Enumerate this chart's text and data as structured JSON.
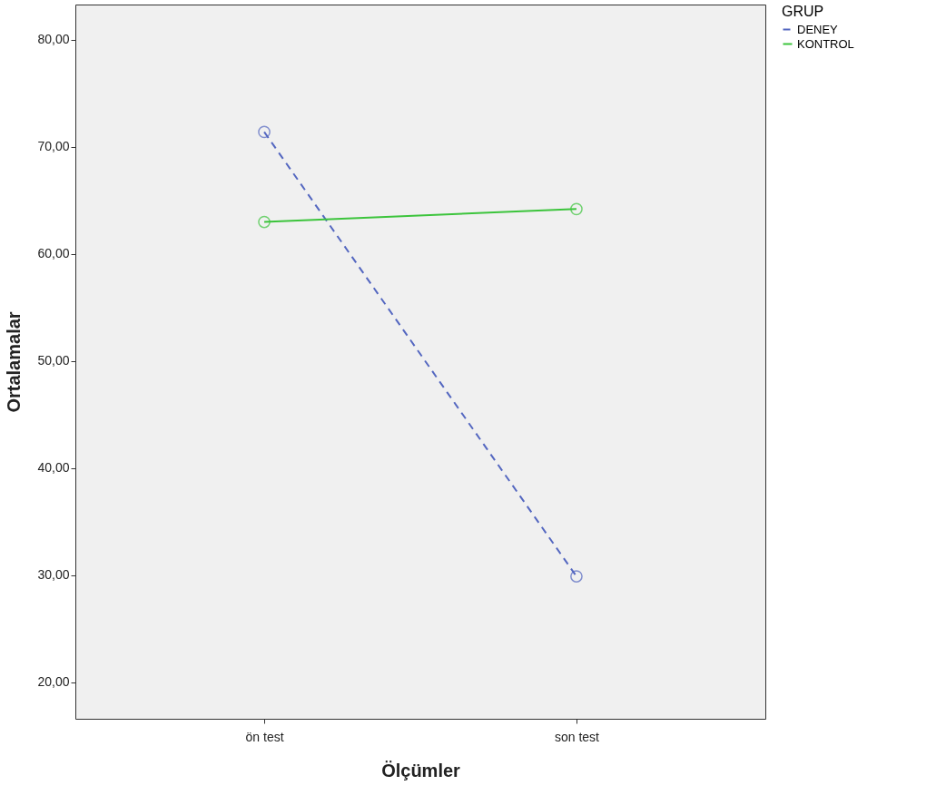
{
  "chart_data": {
    "type": "line",
    "xlabel": "Ölçümler",
    "ylabel": "Ortalamalar",
    "legend_title": "GRUP",
    "categories": [
      "ön test",
      "son test"
    ],
    "series": [
      {
        "name": "DENEY",
        "color": "#5467c0",
        "line_style": "dashed",
        "values": [
          71.4,
          29.9
        ]
      },
      {
        "name": "KONTROL",
        "color": "#3cc43c",
        "line_style": "solid",
        "values": [
          63.0,
          64.2
        ]
      }
    ],
    "ylim": [
      16.6,
      83.3
    ],
    "yticks": [
      {
        "value": 20,
        "label": "20,00"
      },
      {
        "value": 30,
        "label": "30,00"
      },
      {
        "value": 40,
        "label": "40,00"
      },
      {
        "value": 50,
        "label": "50,00"
      },
      {
        "value": 60,
        "label": "60,00"
      },
      {
        "value": 70,
        "label": "70,00"
      },
      {
        "value": 80,
        "label": "80,00"
      }
    ],
    "marker": "circle",
    "grid": false,
    "legend": "top right"
  }
}
